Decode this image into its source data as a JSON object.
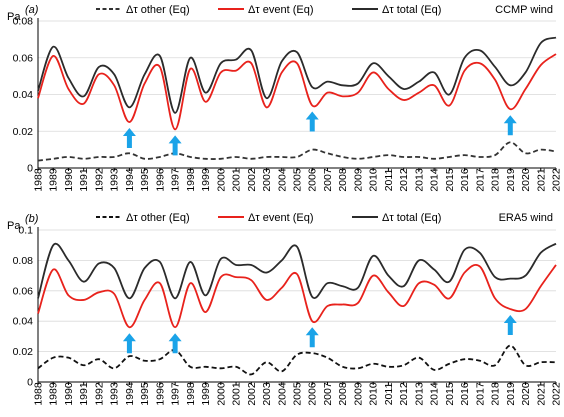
{
  "chart_data": [
    {
      "type": "line",
      "panel_label": "(a)",
      "unit": "Pa",
      "annotation": "CCMP wind",
      "x": [
        1988,
        1989,
        1990,
        1991,
        1992,
        1993,
        1994,
        1995,
        1996,
        1997,
        1998,
        1999,
        2000,
        2001,
        2002,
        2003,
        2004,
        2005,
        2006,
        2007,
        2008,
        2009,
        2010,
        2011,
        2012,
        2013,
        2014,
        2015,
        2016,
        2017,
        2018,
        2019,
        2020,
        2021,
        2022
      ],
      "x_tick_labels": [
        "1988",
        "1989",
        "1990",
        "1991",
        "1992",
        "1993",
        "1994",
        "1995",
        "1996",
        "1997",
        "1998",
        "1999",
        "2000",
        "2001",
        "2002",
        "2003",
        "2004",
        "2005",
        "2006",
        "2007",
        "2008",
        "2009",
        "2010",
        "2011",
        "2012",
        "2013",
        "2014",
        "2015",
        "2016",
        "2017",
        "2018",
        "2019",
        "2020",
        "2021",
        "2022"
      ],
      "ylim": [
        0,
        0.08
      ],
      "y_ticks": [
        0,
        0.02,
        0.04,
        0.06,
        0.08
      ],
      "y_tick_labels": [
        "0",
        "0.02",
        "0.04",
        "0.06",
        "0.08"
      ],
      "grid": true,
      "series": [
        {
          "name": "Δτ other (Eq)",
          "color": "#333333",
          "dash": "dashed",
          "values": [
            0.004,
            0.005,
            0.006,
            0.005,
            0.006,
            0.006,
            0.008,
            0.005,
            0.006,
            0.008,
            0.006,
            0.005,
            0.005,
            0.006,
            0.005,
            0.006,
            0.006,
            0.006,
            0.01,
            0.008,
            0.006,
            0.005,
            0.006,
            0.007,
            0.006,
            0.006,
            0.005,
            0.006,
            0.007,
            0.006,
            0.007,
            0.014,
            0.008,
            0.01,
            0.009
          ]
        },
        {
          "name": "Δτ event (Eq)",
          "color": "#e8221c",
          "dash": "solid",
          "values": [
            0.038,
            0.061,
            0.043,
            0.035,
            0.051,
            0.045,
            0.025,
            0.046,
            0.055,
            0.021,
            0.054,
            0.036,
            0.052,
            0.053,
            0.057,
            0.033,
            0.052,
            0.057,
            0.034,
            0.041,
            0.039,
            0.041,
            0.052,
            0.043,
            0.037,
            0.041,
            0.045,
            0.034,
            0.053,
            0.057,
            0.048,
            0.032,
            0.043,
            0.056,
            0.062
          ]
        },
        {
          "name": "Δτ total (Eq)",
          "color": "#2b2b2b",
          "dash": "solid",
          "values": [
            0.042,
            0.066,
            0.049,
            0.039,
            0.055,
            0.051,
            0.033,
            0.051,
            0.061,
            0.03,
            0.06,
            0.041,
            0.057,
            0.059,
            0.064,
            0.038,
            0.058,
            0.063,
            0.044,
            0.047,
            0.045,
            0.046,
            0.057,
            0.05,
            0.043,
            0.047,
            0.052,
            0.04,
            0.06,
            0.064,
            0.055,
            0.045,
            0.052,
            0.068,
            0.071
          ]
        }
      ],
      "arrows_at_years": [
        1994,
        1997,
        2006,
        2019
      ],
      "arrow_color": "#1aa3e8"
    },
    {
      "type": "line",
      "panel_label": "(b)",
      "unit": "Pa",
      "annotation": "ERA5 wind",
      "x": [
        1988,
        1989,
        1990,
        1991,
        1992,
        1993,
        1994,
        1995,
        1996,
        1997,
        1998,
        1999,
        2000,
        2001,
        2002,
        2003,
        2004,
        2005,
        2006,
        2007,
        2008,
        2009,
        2010,
        2011,
        2012,
        2013,
        2014,
        2015,
        2016,
        2017,
        2018,
        2019,
        2020,
        2021,
        2022
      ],
      "x_tick_labels": [
        "1988",
        "1989",
        "1990",
        "1991",
        "1992",
        "1993",
        "1994",
        "1995",
        "1996",
        "1997",
        "1998",
        "1999",
        "2000",
        "2001",
        "2002",
        "2003",
        "2004",
        "2005",
        "2006",
        "2007",
        "2008",
        "2009",
        "2010",
        "2011",
        "2012",
        "2013",
        "2014",
        "2015",
        "2016",
        "2017",
        "2018",
        "2019",
        "2020",
        "2021",
        "2022"
      ],
      "ylim": [
        0,
        0.1
      ],
      "y_ticks": [
        0,
        0.02,
        0.04,
        0.06,
        0.08,
        0.1
      ],
      "y_tick_labels": [
        "0",
        "0.02",
        "0.04",
        "0.06",
        "0.08",
        "0.1"
      ],
      "grid": true,
      "series": [
        {
          "name": "Δτ other (Eq)",
          "color": "#111111",
          "dash": "dashed",
          "values": [
            0.009,
            0.016,
            0.016,
            0.011,
            0.015,
            0.009,
            0.017,
            0.014,
            0.015,
            0.021,
            0.01,
            0.01,
            0.009,
            0.01,
            0.005,
            0.013,
            0.007,
            0.018,
            0.019,
            0.016,
            0.01,
            0.009,
            0.012,
            0.01,
            0.011,
            0.016,
            0.008,
            0.012,
            0.015,
            0.014,
            0.011,
            0.024,
            0.011,
            0.013,
            0.013
          ]
        },
        {
          "name": "Δτ event (Eq)",
          "color": "#e8221c",
          "dash": "solid",
          "values": [
            0.045,
            0.074,
            0.057,
            0.054,
            0.059,
            0.058,
            0.036,
            0.054,
            0.065,
            0.036,
            0.065,
            0.046,
            0.069,
            0.069,
            0.067,
            0.054,
            0.062,
            0.071,
            0.04,
            0.05,
            0.051,
            0.052,
            0.07,
            0.059,
            0.05,
            0.065,
            0.064,
            0.055,
            0.072,
            0.076,
            0.055,
            0.048,
            0.048,
            0.063,
            0.077
          ]
        },
        {
          "name": "Δτ total (Eq)",
          "color": "#2b2b2b",
          "dash": "solid",
          "values": [
            0.055,
            0.09,
            0.08,
            0.066,
            0.078,
            0.075,
            0.055,
            0.075,
            0.079,
            0.055,
            0.079,
            0.057,
            0.081,
            0.077,
            0.077,
            0.072,
            0.08,
            0.089,
            0.056,
            0.065,
            0.063,
            0.062,
            0.083,
            0.07,
            0.063,
            0.08,
            0.074,
            0.066,
            0.087,
            0.085,
            0.069,
            0.068,
            0.07,
            0.085,
            0.091
          ]
        }
      ],
      "arrows_at_years": [
        1994,
        1997,
        2006,
        2019
      ],
      "arrow_color": "#1aa3e8"
    }
  ]
}
